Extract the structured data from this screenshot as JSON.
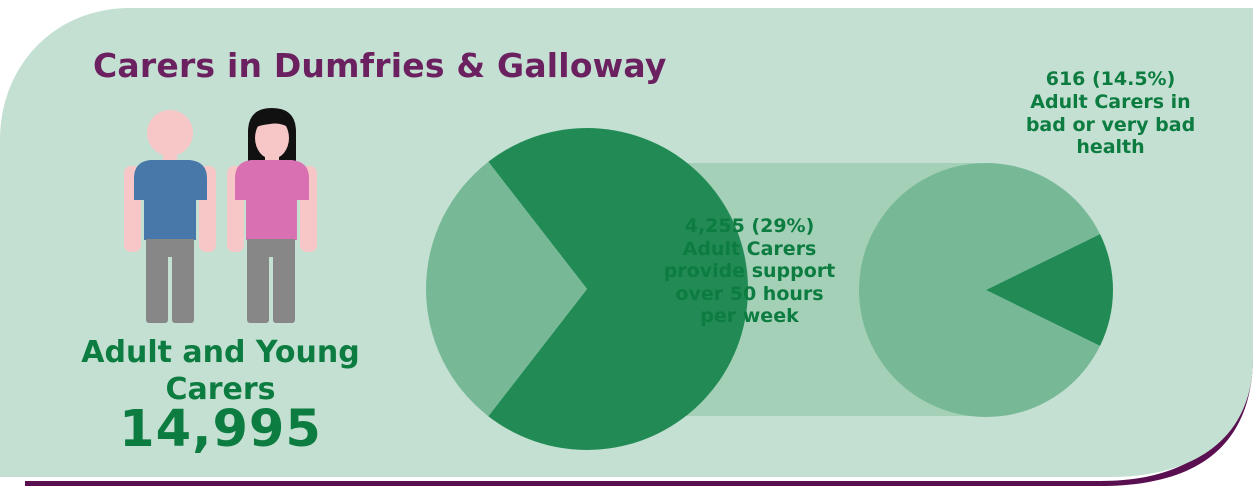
{
  "title": "Carers in Dumfries & Galloway",
  "summary": {
    "label": "Adult and Young Carers",
    "value": "14,995"
  },
  "annotations": {
    "hours_over_50": "4,255 (29%) Adult Carers provide support over 50 hours per week",
    "bad_health": "616 (14.5%) Adult Carers in bad or very bad health"
  },
  "colors": {
    "panel_bg": "#c4e0d2",
    "pie_dark": "#228b55",
    "pie_light": "#77b997",
    "connector": "#a4d0b8",
    "title": "#6b2060",
    "text_green": "#0c7c40",
    "border_purple": "#5a0f50",
    "person_skin": "#f7c6c7",
    "person_shirt_male": "#4778a9",
    "person_shirt_female": "#d970b1",
    "person_trousers": "#878787",
    "person_hair": "#111111"
  },
  "icons": [
    "male-person-icon",
    "female-person-icon"
  ],
  "chart_data": [
    {
      "type": "pie",
      "title": "",
      "slices": [
        {
          "label": "4,255 (29%) Adult Carers provide support over 50 hours per week",
          "value": 29
        },
        {
          "label": "",
          "value": 71
        }
      ]
    },
    {
      "type": "pie",
      "title": "",
      "slices": [
        {
          "label": "616 (14.5%) Adult Carers in bad or very bad health",
          "value": 14.5
        },
        {
          "label": "",
          "value": 85.5
        }
      ]
    }
  ]
}
